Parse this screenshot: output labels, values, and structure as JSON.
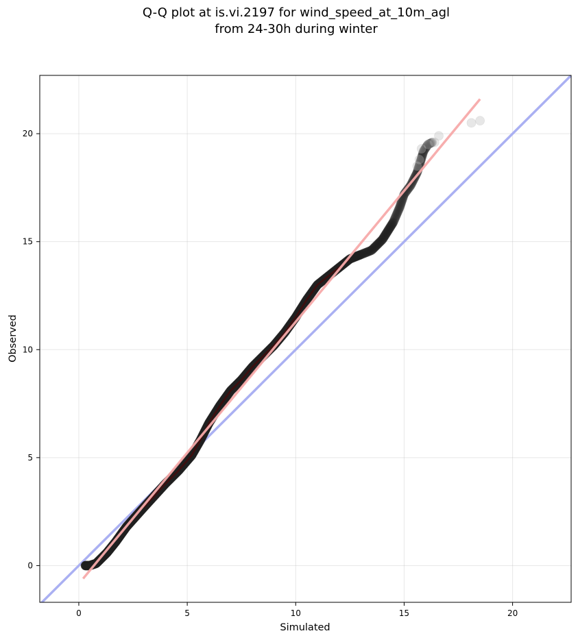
{
  "chart_data": {
    "type": "scatter",
    "title": "Q-Q plot at is.vi.2197 for wind_speed_at_10m_agl",
    "subtitle": "from 24-30h during winter",
    "xlabel": "Simulated",
    "ylabel": "Observed",
    "xlim": [
      -1.8,
      22.7
    ],
    "ylim": [
      -1.7,
      22.7
    ],
    "xticks": [
      0,
      5,
      10,
      15,
      20
    ],
    "yticks": [
      0,
      5,
      10,
      15,
      20
    ],
    "grid": true,
    "reference_line": {
      "x": [
        -1.8,
        22.7
      ],
      "y": [
        -1.8,
        22.7
      ],
      "color": "#aab0f2"
    },
    "fit_line": {
      "x": [
        0.2,
        18.5
      ],
      "y": [
        -0.6,
        21.6
      ],
      "color": "#f7aaaa"
    },
    "quantile_knots": [
      [
        0.3,
        0.0
      ],
      [
        0.5,
        0.0
      ],
      [
        0.8,
        0.1
      ],
      [
        1.0,
        0.3
      ],
      [
        1.3,
        0.6
      ],
      [
        1.7,
        1.1
      ],
      [
        2.2,
        1.8
      ],
      [
        3.0,
        2.7
      ],
      [
        4.0,
        3.8
      ],
      [
        4.6,
        4.4
      ],
      [
        5.2,
        5.1
      ],
      [
        5.6,
        5.8
      ],
      [
        6.0,
        6.6
      ],
      [
        6.5,
        7.4
      ],
      [
        7.0,
        8.1
      ],
      [
        7.5,
        8.6
      ],
      [
        8.0,
        9.2
      ],
      [
        8.5,
        9.7
      ],
      [
        9.0,
        10.2
      ],
      [
        9.5,
        10.8
      ],
      [
        10.0,
        11.5
      ],
      [
        10.5,
        12.3
      ],
      [
        11.0,
        13.0
      ],
      [
        11.5,
        13.4
      ],
      [
        12.0,
        13.8
      ],
      [
        12.5,
        14.2
      ],
      [
        13.0,
        14.4
      ],
      [
        13.5,
        14.6
      ],
      [
        14.0,
        15.1
      ],
      [
        14.5,
        15.9
      ],
      [
        14.8,
        16.6
      ],
      [
        15.0,
        17.2
      ],
      [
        15.3,
        17.6
      ],
      [
        15.6,
        18.2
      ],
      [
        15.9,
        19.2
      ],
      [
        16.1,
        19.5
      ],
      [
        16.3,
        19.6
      ]
    ],
    "tail_points": [
      [
        15.6,
        18.5
      ],
      [
        15.7,
        18.8
      ],
      [
        15.8,
        19.3
      ],
      [
        16.1,
        19.5
      ],
      [
        16.4,
        19.6
      ],
      [
        16.6,
        19.9
      ],
      [
        18.1,
        20.5
      ],
      [
        18.5,
        20.6
      ]
    ],
    "point_count": 900,
    "point_color": "#222222"
  }
}
